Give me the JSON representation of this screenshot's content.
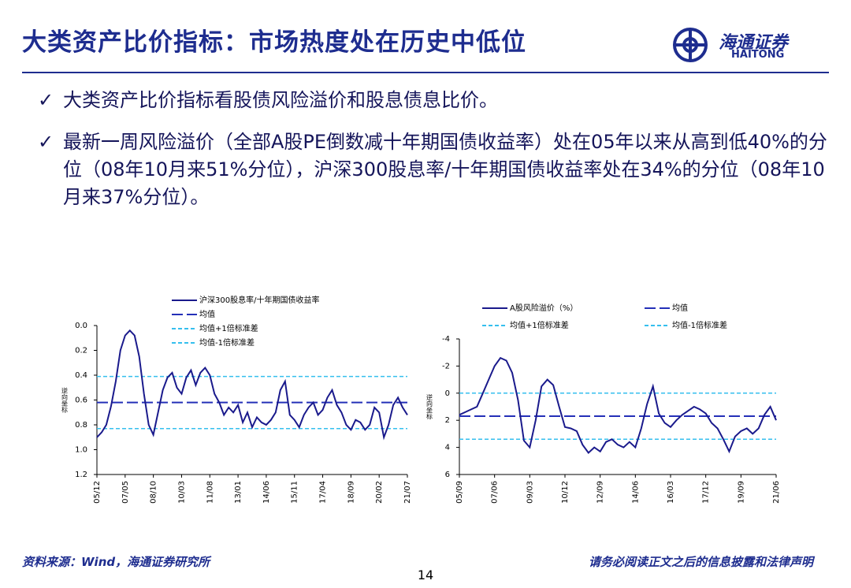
{
  "header": {
    "title": "大类资产比价指标：市场热度处在历史中低位",
    "logo_cn": "海通证券",
    "logo_en": "HAITONG"
  },
  "bullets": [
    "大类资产比价指标看股债风险溢价和股息债息比价。",
    "最新一周风险溢价（全部A股PE倒数减十年期国债收益率）处在05年以来从高到低40%的分位（08年10月来51%分位），沪深300股息率/十年期国债收益率处在34%的分位（08年10月来37%分位）。"
  ],
  "footer": {
    "source": "资料来源：Wind，海通证券研究所",
    "disclaimer": "请务必阅读正文之后的信息披露和法律声明",
    "page": "14"
  },
  "chart_data": [
    {
      "type": "line",
      "y_label": "逆向坐标",
      "y_inverted": true,
      "ylim": [
        0,
        1.2
      ],
      "yticks": [
        {
          "value": 0,
          "label": "0.0"
        },
        0.2,
        0.4,
        0.6,
        0.8,
        {
          "value": 1,
          "label": "1.0"
        },
        1.2
      ],
      "categories": [
        "05/12",
        null,
        null,
        null,
        null,
        null,
        "07/05",
        null,
        null,
        null,
        null,
        null,
        "08/10",
        null,
        null,
        null,
        null,
        null,
        "10/03",
        null,
        null,
        null,
        null,
        null,
        "11/08",
        null,
        null,
        null,
        null,
        null,
        "13/01",
        null,
        null,
        null,
        null,
        null,
        "14/06",
        null,
        null,
        null,
        null,
        null,
        "15/11",
        null,
        null,
        null,
        null,
        null,
        "17/04",
        null,
        null,
        null,
        null,
        null,
        "18/09",
        null,
        null,
        null,
        null,
        null,
        "20/02",
        null,
        null,
        null,
        null,
        null,
        "21/07"
      ],
      "series": [
        {
          "name": "沪深300股息率/十年期国债收益率",
          "color": "#1a1a8c",
          "values": [
            0.9,
            0.86,
            0.8,
            0.65,
            0.45,
            0.2,
            0.08,
            0.04,
            0.08,
            0.25,
            0.55,
            0.8,
            0.88,
            0.7,
            0.52,
            0.42,
            0.38,
            0.5,
            0.55,
            0.42,
            0.36,
            0.48,
            0.38,
            0.34,
            0.4,
            0.55,
            0.62,
            0.72,
            0.66,
            0.7,
            0.64,
            0.78,
            0.7,
            0.82,
            0.74,
            0.78,
            0.8,
            0.76,
            0.7,
            0.52,
            0.45,
            0.72,
            0.76,
            0.82,
            0.72,
            0.66,
            0.62,
            0.72,
            0.68,
            0.58,
            0.52,
            0.64,
            0.7,
            0.8,
            0.84,
            0.76,
            0.78,
            0.84,
            0.8,
            0.66,
            0.7,
            0.9,
            0.8,
            0.64,
            0.58,
            0.66,
            0.72
          ]
        }
      ],
      "hlines": [
        {
          "name": "均值",
          "value": 0.62,
          "color": "#2430b8",
          "dash": "long"
        },
        {
          "name": "均值+1倍标准差",
          "value": 0.83,
          "color": "#35bfee",
          "dash": "short"
        },
        {
          "name": "均值-1倍标准差",
          "value": 0.41,
          "color": "#35bfee",
          "dash": "short"
        }
      ]
    },
    {
      "type": "line",
      "y_label": "逆向坐标",
      "y_inverted": true,
      "ylim": [
        -4,
        6
      ],
      "yticks": [
        -4,
        -2,
        0,
        2,
        4,
        6
      ],
      "categories": [
        "05/09",
        null,
        null,
        null,
        null,
        null,
        "07/06",
        null,
        null,
        null,
        null,
        null,
        "09/03",
        null,
        null,
        null,
        null,
        null,
        "10/12",
        null,
        null,
        null,
        null,
        null,
        "12/09",
        null,
        null,
        null,
        null,
        null,
        "14/06",
        null,
        null,
        null,
        null,
        null,
        "16/03",
        null,
        null,
        null,
        null,
        null,
        "17/12",
        null,
        null,
        null,
        null,
        null,
        "19/09",
        null,
        null,
        null,
        null,
        null,
        "21/06"
      ],
      "series": [
        {
          "name": "A股风险溢价（%）",
          "color": "#1a1a8c",
          "values": [
            1.6,
            1.4,
            1.2,
            1.0,
            0.0,
            -1.0,
            -2.0,
            -2.6,
            -2.4,
            -1.5,
            0.5,
            3.5,
            4.0,
            2.0,
            -0.5,
            -1.0,
            -0.6,
            1.0,
            2.5,
            2.6,
            2.8,
            3.8,
            4.4,
            4.0,
            4.3,
            3.6,
            3.4,
            3.8,
            4.0,
            3.6,
            4.0,
            2.6,
            0.8,
            -0.5,
            1.5,
            2.2,
            2.5,
            2.0,
            1.6,
            1.3,
            1.0,
            1.2,
            1.5,
            2.2,
            2.6,
            3.4,
            4.3,
            3.2,
            2.8,
            2.6,
            3.0,
            2.6,
            1.6,
            1.0,
            2.0
          ]
        }
      ],
      "hlines": [
        {
          "name": "均值",
          "value": 1.7,
          "color": "#2430b8",
          "dash": "long"
        },
        {
          "name": "均值+1倍标准差",
          "value": 3.4,
          "color": "#35bfee",
          "dash": "short"
        },
        {
          "name": "均值-1倍标准差",
          "value": 0.0,
          "color": "#35bfee",
          "dash": "short"
        }
      ]
    }
  ]
}
